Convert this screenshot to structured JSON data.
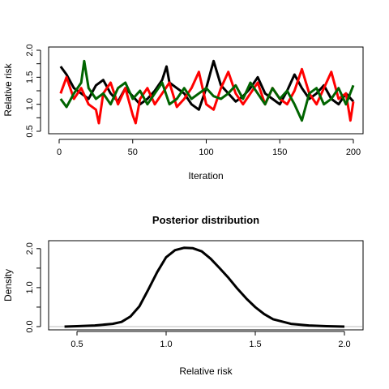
{
  "chart_data": [
    {
      "type": "line",
      "title": "",
      "xlabel": "Iteration",
      "ylabel": "Relative risk",
      "xlim": [
        0,
        200
      ],
      "ylim": [
        0.5,
        2.0
      ],
      "xticks": [
        "0",
        "50",
        "100",
        "150",
        "200"
      ],
      "yticks": [
        "0.5",
        "1.0",
        "1.5",
        "2.0"
      ],
      "grid": false,
      "series": [
        {
          "color": "#000000",
          "x": [
            1,
            5,
            10,
            15,
            20,
            25,
            30,
            35,
            40,
            45,
            50,
            55,
            60,
            65,
            70,
            73,
            75,
            80,
            85,
            90,
            95,
            100,
            103,
            105,
            110,
            115,
            120,
            125,
            130,
            135,
            140,
            145,
            150,
            155,
            160,
            165,
            170,
            175,
            180,
            185,
            190,
            195,
            200
          ],
          "values": [
            1.7,
            1.55,
            1.3,
            1.2,
            1.1,
            1.35,
            1.45,
            1.2,
            1.05,
            1.3,
            1.15,
            1.0,
            1.1,
            1.25,
            1.45,
            1.7,
            1.4,
            1.3,
            1.2,
            1.0,
            0.9,
            1.3,
            1.6,
            1.8,
            1.35,
            1.2,
            1.05,
            1.15,
            1.3,
            1.5,
            1.2,
            1.1,
            1.0,
            1.25,
            1.55,
            1.3,
            1.1,
            1.2,
            1.35,
            1.1,
            1.0,
            1.2,
            1.05
          ]
        },
        {
          "color": "#ff0000",
          "x": [
            1,
            5,
            10,
            15,
            20,
            25,
            27,
            30,
            35,
            40,
            45,
            50,
            52,
            55,
            60,
            65,
            70,
            75,
            80,
            85,
            90,
            95,
            100,
            105,
            110,
            115,
            120,
            125,
            130,
            135,
            140,
            145,
            150,
            155,
            160,
            165,
            170,
            175,
            180,
            185,
            190,
            195,
            198,
            200
          ],
          "values": [
            1.2,
            1.5,
            1.1,
            1.3,
            1.0,
            0.9,
            0.65,
            1.2,
            1.4,
            1.0,
            1.3,
            0.8,
            0.65,
            1.1,
            1.3,
            1.0,
            1.2,
            1.4,
            0.95,
            1.1,
            1.3,
            1.6,
            1.0,
            0.9,
            1.3,
            1.6,
            1.2,
            1.0,
            1.2,
            1.4,
            1.0,
            1.3,
            1.1,
            1.0,
            1.25,
            1.65,
            1.2,
            1.0,
            1.3,
            1.6,
            1.1,
            1.2,
            0.7,
            1.05
          ]
        },
        {
          "color": "#006400",
          "x": [
            1,
            5,
            10,
            15,
            17,
            20,
            25,
            30,
            35,
            40,
            45,
            50,
            55,
            60,
            65,
            70,
            75,
            80,
            85,
            90,
            95,
            100,
            105,
            110,
            115,
            120,
            125,
            130,
            135,
            140,
            145,
            150,
            155,
            160,
            165,
            170,
            175,
            180,
            185,
            190,
            195,
            200
          ],
          "values": [
            1.1,
            0.95,
            1.2,
            1.4,
            1.8,
            1.3,
            1.1,
            1.2,
            1.0,
            1.3,
            1.4,
            1.1,
            1.25,
            1.0,
            1.2,
            1.4,
            1.0,
            1.1,
            1.3,
            1.1,
            1.2,
            1.3,
            1.15,
            1.1,
            1.2,
            1.35,
            1.1,
            1.4,
            1.2,
            1.0,
            1.3,
            1.1,
            1.25,
            1.0,
            0.7,
            1.2,
            1.3,
            1.0,
            1.1,
            1.3,
            1.0,
            1.35
          ]
        }
      ]
    },
    {
      "type": "line",
      "title": "Posterior distribution",
      "xlabel": "Relative risk",
      "ylabel": "Density",
      "xlim": [
        0.4,
        2.05
      ],
      "ylim": [
        0,
        2.1
      ],
      "xticks": [
        "0.5",
        "1.0",
        "1.5",
        "2.0"
      ],
      "yticks": [
        "0.0",
        "1.0",
        "2.0"
      ],
      "grid": false,
      "baseline": 0,
      "series": [
        {
          "color": "#000000",
          "x": [
            0.43,
            0.5,
            0.6,
            0.7,
            0.75,
            0.8,
            0.85,
            0.9,
            0.95,
            1.0,
            1.05,
            1.1,
            1.15,
            1.2,
            1.25,
            1.3,
            1.35,
            1.4,
            1.45,
            1.5,
            1.55,
            1.6,
            1.7,
            1.8,
            1.9,
            2.0
          ],
          "values": [
            0.0,
            0.01,
            0.03,
            0.07,
            0.12,
            0.26,
            0.52,
            0.95,
            1.4,
            1.78,
            1.96,
            2.02,
            2.01,
            1.93,
            1.74,
            1.5,
            1.25,
            0.97,
            0.72,
            0.5,
            0.32,
            0.19,
            0.07,
            0.03,
            0.01,
            0.0
          ]
        }
      ]
    }
  ]
}
